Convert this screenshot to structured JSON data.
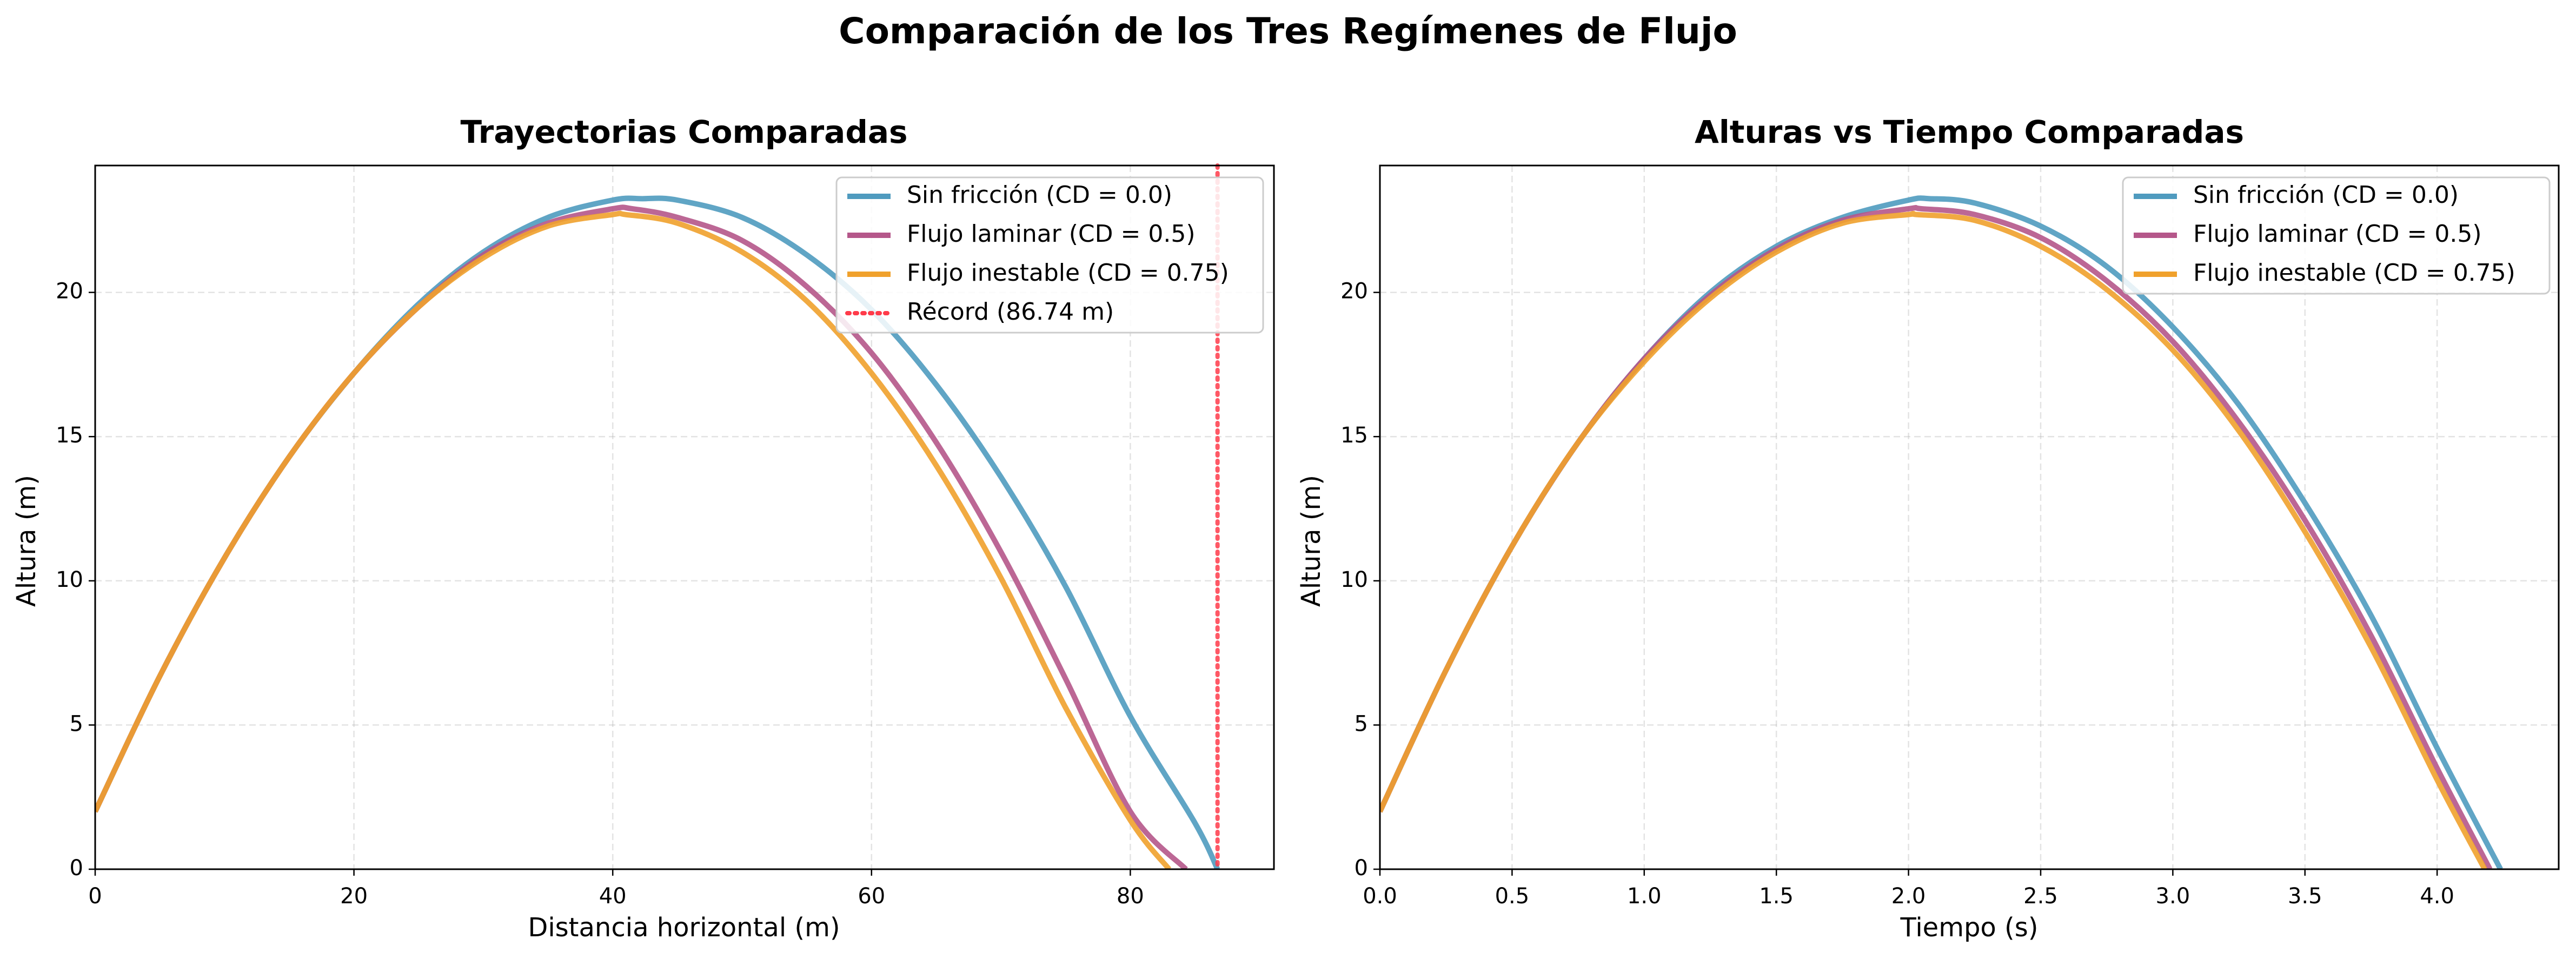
{
  "figure": {
    "suptitle": "Comparación de los Tres Regímenes de Flujo"
  },
  "colors": {
    "sin": "#4f9bbf",
    "laminar": "#b5578a",
    "inestable": "#f0a12c",
    "record": "#ff3b4a"
  },
  "chart_data": [
    {
      "type": "line",
      "title": "Trayectorias Comparadas",
      "xlabel": "Distancia horizontal (m)",
      "ylabel": "Altura (m)",
      "xlim": [
        0,
        91.1
      ],
      "ylim": [
        0,
        24.4
      ],
      "xticks": [
        "0",
        "20",
        "40",
        "60",
        "80"
      ],
      "yticks": [
        "0",
        "5",
        "10",
        "15",
        "20"
      ],
      "grid": true,
      "legend_position": "top-right",
      "series": [
        {
          "name": "Sin fricción (CD = 0.0)",
          "color": "#4f9bbf",
          "x": [
            0,
            5,
            10,
            15,
            20,
            25,
            30,
            35,
            40,
            42.3,
            45,
            50,
            55,
            60,
            65,
            70,
            75,
            80,
            85,
            86.74
          ],
          "y": [
            2.0,
            6.7,
            10.8,
            14.3,
            17.2,
            19.6,
            21.4,
            22.6,
            23.2,
            23.25,
            23.2,
            22.6,
            21.3,
            19.4,
            16.8,
            13.6,
            9.8,
            5.3,
            1.6,
            0.0
          ]
        },
        {
          "name": "Flujo laminar (CD = 0.5)",
          "color": "#b5578a",
          "x": [
            0,
            5,
            10,
            15,
            20,
            25,
            30,
            35,
            40,
            41.5,
            45,
            50,
            55,
            60,
            65,
            70,
            75,
            80,
            84.3
          ],
          "y": [
            2.0,
            6.7,
            10.8,
            14.3,
            17.2,
            19.5,
            21.3,
            22.4,
            22.9,
            22.9,
            22.6,
            21.8,
            20.2,
            17.9,
            14.8,
            11.0,
            6.6,
            2.0,
            0.0
          ]
        },
        {
          "name": "Flujo inestable (CD = 0.75)",
          "color": "#f0a12c",
          "x": [
            0,
            5,
            10,
            15,
            20,
            25,
            30,
            35,
            40,
            41.0,
            45,
            50,
            55,
            60,
            65,
            70,
            75,
            80,
            83.0
          ],
          "y": [
            2.0,
            6.7,
            10.8,
            14.3,
            17.2,
            19.5,
            21.2,
            22.3,
            22.7,
            22.7,
            22.4,
            21.4,
            19.7,
            17.2,
            14.0,
            10.1,
            5.6,
            1.7,
            0.0
          ]
        }
      ],
      "reference_line": {
        "name": "Récord (86.74 m)",
        "x": 86.74,
        "color": "#ff3b4a",
        "style": "dotted"
      }
    },
    {
      "type": "line",
      "title": "Alturas vs Tiempo Comparadas",
      "xlabel": "Tiempo (s)",
      "ylabel": "Altura (m)",
      "xlim": [
        0,
        4.46
      ],
      "ylim": [
        0,
        24.4
      ],
      "xticks": [
        "0.0",
        "0.5",
        "1.0",
        "1.5",
        "2.0",
        "2.5",
        "3.0",
        "3.5",
        "4.0"
      ],
      "yticks": [
        "0",
        "5",
        "10",
        "15",
        "20"
      ],
      "grid": true,
      "legend_position": "top-right",
      "series": [
        {
          "name": "Sin fricción (CD = 0.0)",
          "color": "#4f9bbf",
          "x": [
            0,
            0.25,
            0.5,
            0.75,
            1.0,
            1.25,
            1.5,
            1.75,
            2.0,
            2.08,
            2.25,
            2.5,
            2.75,
            3.0,
            3.25,
            3.5,
            3.75,
            4.0,
            4.24
          ],
          "y": [
            2.0,
            6.9,
            11.2,
            14.8,
            17.7,
            20.0,
            21.6,
            22.6,
            23.2,
            23.25,
            23.1,
            22.3,
            20.9,
            18.8,
            16.1,
            12.7,
            8.8,
            4.2,
            0.0
          ]
        },
        {
          "name": "Flujo laminar (CD = 0.5)",
          "color": "#b5578a",
          "x": [
            0,
            0.25,
            0.5,
            0.75,
            1.0,
            1.25,
            1.5,
            1.75,
            2.0,
            2.05,
            2.25,
            2.5,
            2.75,
            3.0,
            3.25,
            3.5,
            3.75,
            4.0,
            4.2
          ],
          "y": [
            2.0,
            6.9,
            11.2,
            14.8,
            17.7,
            19.9,
            21.5,
            22.5,
            22.9,
            22.9,
            22.7,
            21.9,
            20.4,
            18.3,
            15.5,
            12.1,
            8.1,
            3.5,
            0.0
          ]
        },
        {
          "name": "Flujo inestable (CD = 0.75)",
          "color": "#f0a12c",
          "x": [
            0,
            0.25,
            0.5,
            0.75,
            1.0,
            1.25,
            1.5,
            1.75,
            2.0,
            2.03,
            2.25,
            2.5,
            2.75,
            3.0,
            3.25,
            3.5,
            3.75,
            4.0,
            4.18
          ],
          "y": [
            2.0,
            6.9,
            11.2,
            14.8,
            17.6,
            19.8,
            21.4,
            22.4,
            22.7,
            22.7,
            22.5,
            21.6,
            20.1,
            18.0,
            15.2,
            11.7,
            7.7,
            3.1,
            0.0
          ]
        }
      ]
    }
  ]
}
